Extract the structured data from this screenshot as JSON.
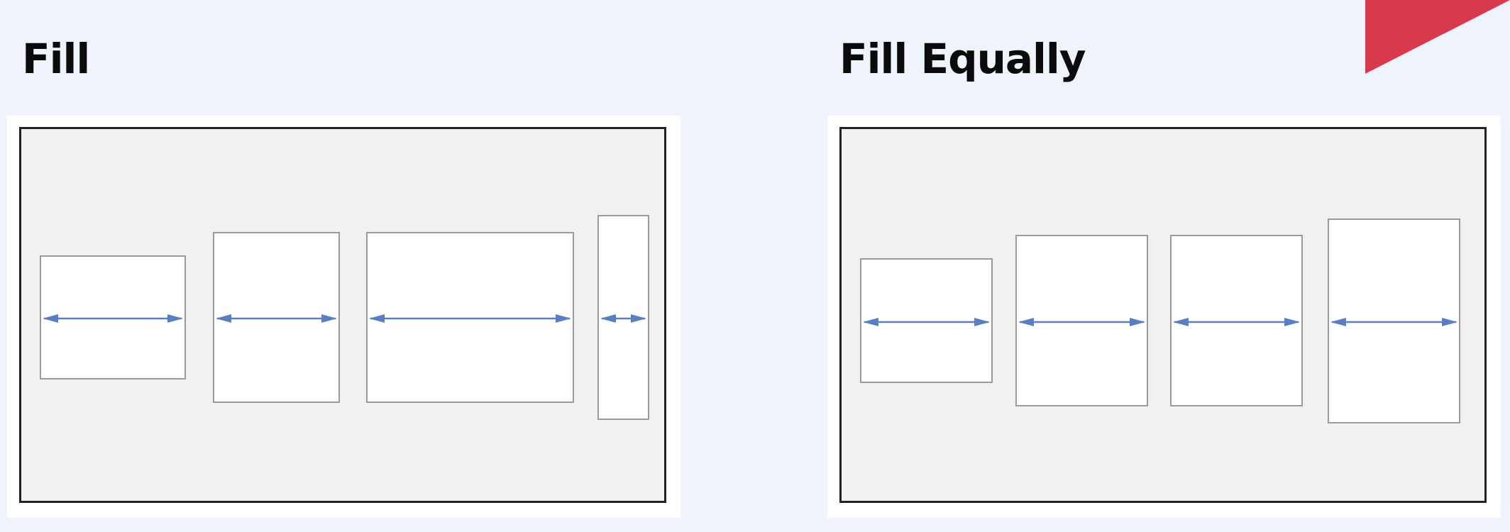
{
  "left_section": {
    "title": "Fill"
  },
  "right_section": {
    "title": "Fill Equally"
  },
  "colors": {
    "background": "#eff4fc",
    "arrow": "#5a7fc0",
    "corner_flag": "#d9394c",
    "frame_border": "#222222",
    "frame_fill": "#f1f1f1",
    "item_border": "#9a9a9a"
  }
}
